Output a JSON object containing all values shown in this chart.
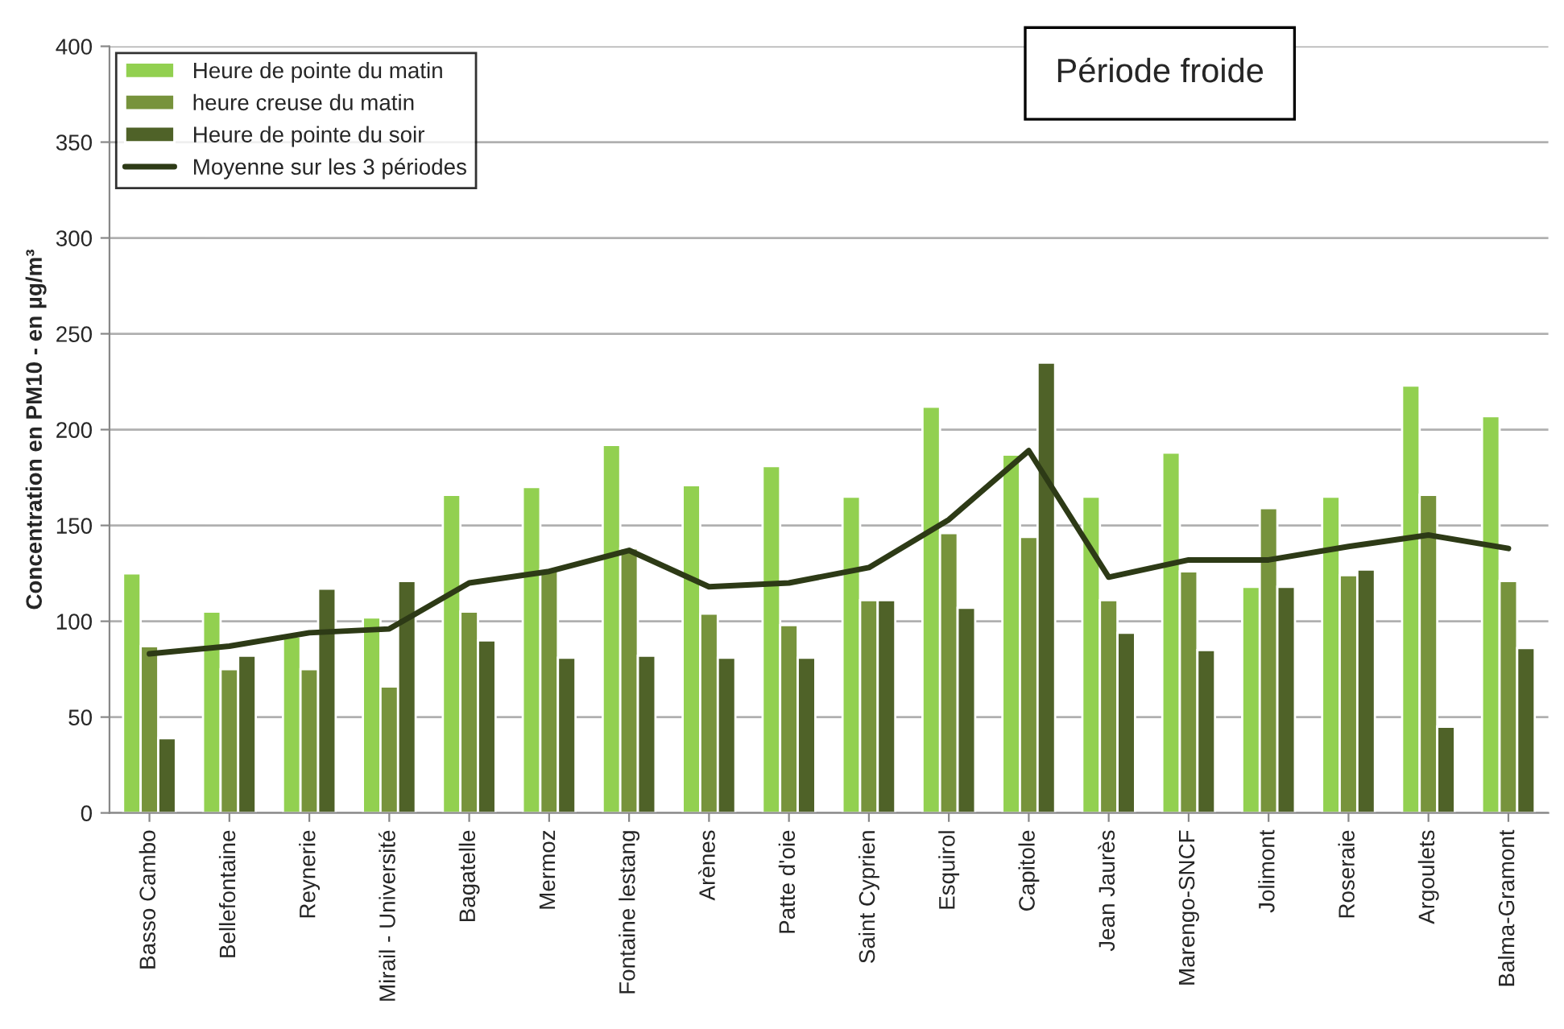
{
  "chart_data": {
    "type": "bar",
    "title": "Période froide",
    "ylabel": "Concentration en PM10 - en µg/m³",
    "categories": [
      "Basso Cambo",
      "Bellefontaine",
      "Reynerie",
      "Mirail - Université",
      "Bagatelle",
      "Mermoz",
      "Fontaine lestang",
      "Arènes",
      "Patte d'oie",
      "Saint Cyprien",
      "Esquirol",
      "Capitole",
      "Jean Jaurès",
      "Marengo-SNCF",
      "Jolimont",
      "Roseraie",
      "Argoulets",
      "Balma-Gramont"
    ],
    "series": [
      {
        "name": "Heure de pointe du matin",
        "color": "#92d050",
        "values": [
          125,
          105,
          92,
          102,
          166,
          170,
          192,
          171,
          181,
          165,
          212,
          187,
          165,
          188,
          118,
          165,
          223,
          207
        ]
      },
      {
        "name": "heure creuse du matin",
        "color": "#77933c",
        "values": [
          87,
          75,
          75,
          66,
          105,
          127,
          138,
          104,
          98,
          111,
          146,
          144,
          111,
          126,
          159,
          124,
          166,
          121
        ]
      },
      {
        "name": "Heure de pointe du soir",
        "color": "#4f6228",
        "values": [
          39,
          82,
          117,
          121,
          90,
          81,
          82,
          81,
          81,
          111,
          107,
          235,
          94,
          85,
          118,
          127,
          45,
          86
        ]
      },
      {
        "name": "Moyenne sur les 3 périodes",
        "type": "line",
        "color": "#2d3a16",
        "values": [
          83,
          87,
          94,
          96,
          120,
          126,
          137,
          118,
          120,
          128,
          153,
          189,
          123,
          132,
          132,
          139,
          145,
          138
        ]
      }
    ],
    "ylim": [
      0,
      400
    ],
    "yticks": [
      0,
      50,
      100,
      150,
      200,
      250,
      300,
      350,
      400
    ],
    "grid": "y",
    "legend": "top left"
  }
}
